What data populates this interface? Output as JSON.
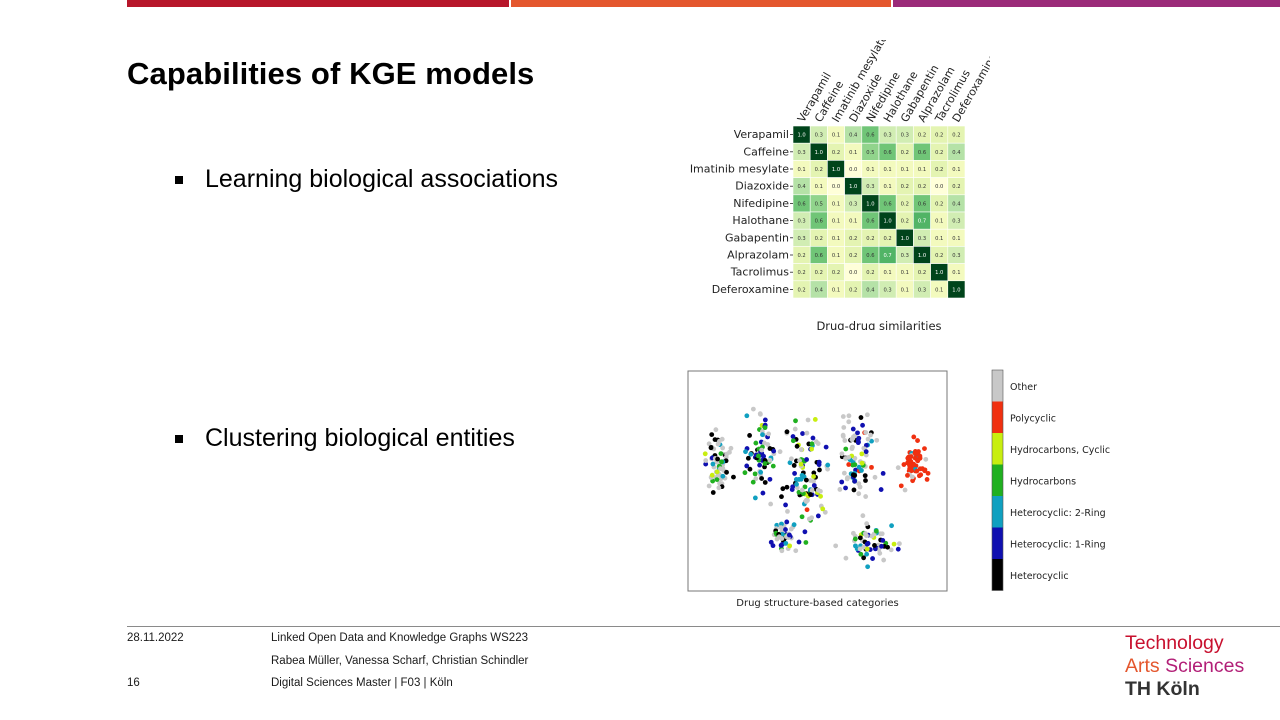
{
  "colors": {
    "bar1": "#b7162a",
    "bar2": "#e4572e",
    "bar3": "#9b2a79",
    "logo_technology": "#c8102e",
    "logo_arts": "#e4572e",
    "logo_sciences": "#b21f77",
    "logo_thkoeln": "#333333"
  },
  "slide": {
    "title": "Capabilities of KGE models",
    "bullets": [
      "Learning biological associations",
      "Clustering biological entities"
    ]
  },
  "chart_data": [
    {
      "type": "heatmap",
      "title": "Drug-drug similarities",
      "row_labels": [
        "Verapamil",
        "Caffeine",
        "Imatinib mesylate",
        "Diazoxide",
        "Nifedipine",
        "Halothane",
        "Gabapentin",
        "Alprazolam",
        "Tacrolimus",
        "Deferoxamine"
      ],
      "col_labels": [
        "Verapamil",
        "Caffeine",
        "Imatinib mesylate",
        "Diazoxide",
        "Nifedipine",
        "Halothane",
        "Gabapentin",
        "Alprazolam",
        "Tacrolimus",
        "Deferoxamine"
      ],
      "values": [
        [
          1.0,
          0.3,
          0.1,
          0.4,
          0.6,
          0.3,
          0.3,
          0.2,
          0.2,
          0.2
        ],
        [
          0.3,
          1.0,
          0.2,
          0.1,
          0.5,
          0.6,
          0.2,
          0.6,
          0.2,
          0.4
        ],
        [
          0.1,
          0.2,
          1.0,
          0.0,
          0.1,
          0.1,
          0.1,
          0.1,
          0.2,
          0.1
        ],
        [
          0.4,
          0.1,
          0.0,
          1.0,
          0.3,
          0.1,
          0.2,
          0.2,
          0.0,
          0.2
        ],
        [
          0.6,
          0.5,
          0.1,
          0.3,
          1.0,
          0.6,
          0.2,
          0.6,
          0.2,
          0.4
        ],
        [
          0.3,
          0.6,
          0.1,
          0.1,
          0.6,
          1.0,
          0.2,
          0.7,
          0.1,
          0.3
        ],
        [
          0.3,
          0.2,
          0.1,
          0.2,
          0.2,
          0.2,
          1.0,
          0.3,
          0.1,
          0.1
        ],
        [
          0.2,
          0.6,
          0.1,
          0.2,
          0.6,
          0.7,
          0.3,
          1.0,
          0.2,
          0.3
        ],
        [
          0.2,
          0.2,
          0.2,
          0.0,
          0.2,
          0.1,
          0.1,
          0.2,
          1.0,
          0.1
        ],
        [
          0.2,
          0.4,
          0.1,
          0.2,
          0.4,
          0.3,
          0.1,
          0.3,
          0.1,
          1.0
        ]
      ]
    },
    {
      "type": "scatter",
      "title": "Drug structure-based categories",
      "legend": [
        {
          "name": "Other",
          "color": "#c8c8c8"
        },
        {
          "name": "Polycyclic",
          "color": "#f03010"
        },
        {
          "name": "Hydrocarbons, Cyclic",
          "color": "#c8ee10"
        },
        {
          "name": "Hydrocarbons",
          "color": "#20b020"
        },
        {
          "name": "Heterocyclic: 2-Ring",
          "color": "#10a0c0"
        },
        {
          "name": "Heterocyclic: 1-Ring",
          "color": "#1010b0"
        },
        {
          "name": "Heterocyclic",
          "color": "#000000"
        }
      ],
      "clusters": [
        {
          "cx": 0.12,
          "cy": 0.42,
          "rx": 0.07,
          "ry": 0.18,
          "n": 70,
          "mix": [
            0.45,
            0.0,
            0.05,
            0.1,
            0.1,
            0.1,
            0.2
          ]
        },
        {
          "cx": 0.28,
          "cy": 0.38,
          "rx": 0.08,
          "ry": 0.25,
          "n": 70,
          "mix": [
            0.2,
            0.0,
            0.05,
            0.15,
            0.15,
            0.3,
            0.15
          ]
        },
        {
          "cx": 0.46,
          "cy": 0.48,
          "rx": 0.12,
          "ry": 0.32,
          "n": 110,
          "mix": [
            0.25,
            0.02,
            0.08,
            0.15,
            0.1,
            0.2,
            0.2
          ]
        },
        {
          "cx": 0.65,
          "cy": 0.4,
          "rx": 0.12,
          "ry": 0.3,
          "n": 90,
          "mix": [
            0.45,
            0.05,
            0.05,
            0.12,
            0.08,
            0.15,
            0.1
          ]
        },
        {
          "cx": 0.88,
          "cy": 0.42,
          "rx": 0.08,
          "ry": 0.13,
          "n": 60,
          "mix": [
            0.1,
            0.85,
            0.0,
            0.0,
            0.05,
            0.0,
            0.0
          ]
        },
        {
          "cx": 0.36,
          "cy": 0.75,
          "rx": 0.07,
          "ry": 0.1,
          "n": 40,
          "mix": [
            0.2,
            0.0,
            0.05,
            0.1,
            0.15,
            0.2,
            0.3
          ]
        },
        {
          "cx": 0.7,
          "cy": 0.78,
          "rx": 0.15,
          "ry": 0.12,
          "n": 60,
          "mix": [
            0.4,
            0.0,
            0.05,
            0.1,
            0.15,
            0.15,
            0.15
          ]
        }
      ]
    }
  ],
  "footer": {
    "date": "28.11.2022",
    "page": "16",
    "course": "Linked Open Data and Knowledge Graphs WS223",
    "authors": "Rabea Müller, Vanessa Scharf, Christian Schindler",
    "program": "Digital Sciences Master | F03 | Köln"
  },
  "logo": {
    "line1": "Technology",
    "line2a": "Arts",
    "line2b": "Sciences",
    "line3": "TH Köln"
  }
}
